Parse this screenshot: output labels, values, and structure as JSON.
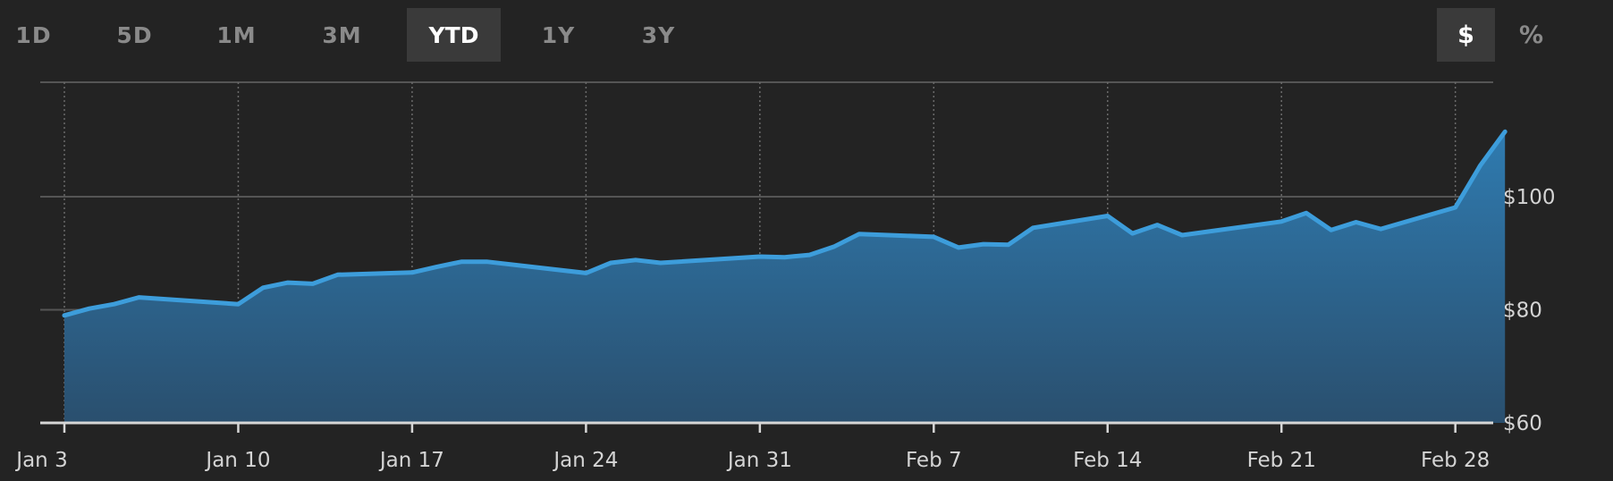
{
  "range_tabs": [
    {
      "label": "1D",
      "active": false
    },
    {
      "label": "5D",
      "active": false
    },
    {
      "label": "1M",
      "active": false
    },
    {
      "label": "3M",
      "active": false
    },
    {
      "label": "YTD",
      "active": true
    },
    {
      "label": "1Y",
      "active": false
    },
    {
      "label": "3Y",
      "active": false
    }
  ],
  "unit_toggle": {
    "dollar_label": "$",
    "percent_label": "%",
    "selected": "$"
  },
  "colors": {
    "background": "#232323",
    "line": "#3d9ddb",
    "fill_top": "#2f7bb0",
    "fill_bottom": "#2a4f6e",
    "grid": "#555555",
    "active_button": "#3a3a3a"
  },
  "chart_data": {
    "type": "area",
    "x": [
      "2022-01-03",
      "2022-01-04",
      "2022-01-05",
      "2022-01-06",
      "2022-01-10",
      "2022-01-11",
      "2022-01-12",
      "2022-01-13",
      "2022-01-14",
      "2022-01-17",
      "2022-01-18",
      "2022-01-19",
      "2022-01-20",
      "2022-01-24",
      "2022-01-25",
      "2022-01-26",
      "2022-01-27",
      "2022-01-31",
      "2022-02-01",
      "2022-02-02",
      "2022-02-03",
      "2022-02-04",
      "2022-02-07",
      "2022-02-08",
      "2022-02-09",
      "2022-02-10",
      "2022-02-11",
      "2022-02-14",
      "2022-02-15",
      "2022-02-16",
      "2022-02-17",
      "2022-02-21",
      "2022-02-22",
      "2022-02-23",
      "2022-02-24",
      "2022-02-25",
      "2022-02-28",
      "2022-03-01",
      "2022-03-02"
    ],
    "y": [
      79,
      80.2,
      81,
      82.2,
      81,
      83.9,
      84.8,
      84.6,
      86.2,
      86.6,
      87.6,
      88.5,
      88.5,
      86.5,
      88.3,
      88.8,
      88.3,
      89.4,
      89.3,
      89.7,
      91.2,
      93.4,
      92.9,
      91,
      91.6,
      91.5,
      94.5,
      96.6,
      93.5,
      95,
      93.2,
      95.6,
      97.1,
      94.1,
      95.5,
      94.3,
      98.1,
      105.5,
      111.5
    ],
    "x_ticks": [
      "Jan 3",
      "Jan 10",
      "Jan 17",
      "Jan 24",
      "Jan 31",
      "Feb 7",
      "Feb 14",
      "Feb 21",
      "Feb 28"
    ],
    "y_ticks": [
      "$100",
      "$80",
      "$60"
    ],
    "y_tick_values": [
      100,
      80,
      60
    ],
    "ylim": [
      60,
      121
    ],
    "grid": true,
    "y_axis_position": "right"
  }
}
